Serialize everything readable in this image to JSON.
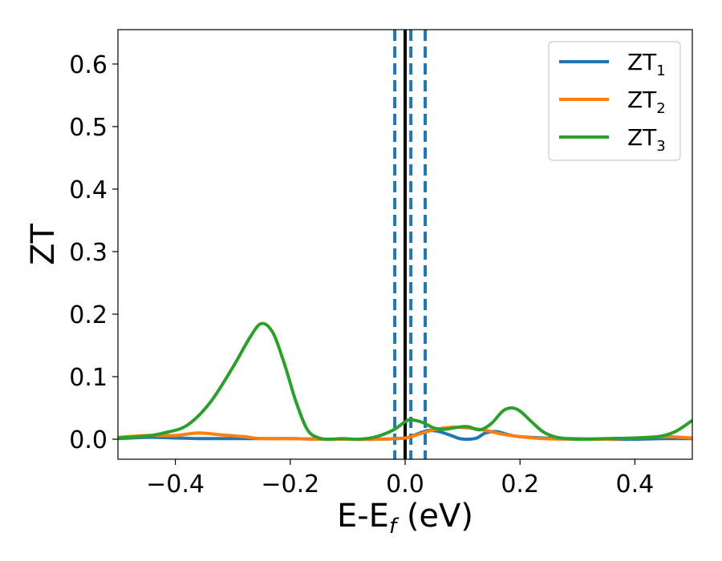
{
  "chart_data": {
    "type": "line",
    "title": "",
    "xlabel": "E-E",
    "xlabel_sub": "f",
    "xlabel_unit": " (eV)",
    "ylabel": "ZT",
    "xlim": [
      -0.5,
      0.5
    ],
    "ylim": [
      -0.032,
      0.655
    ],
    "xticks": [
      -0.4,
      -0.2,
      0.0,
      0.2,
      0.4
    ],
    "xtick_labels": [
      "−0.4",
      "−0.2",
      "0.0",
      "0.2",
      "0.4"
    ],
    "yticks": [
      0.0,
      0.1,
      0.2,
      0.3,
      0.4,
      0.5,
      0.6
    ],
    "ytick_labels": [
      "0.0",
      "0.1",
      "0.2",
      "0.3",
      "0.4",
      "0.5",
      "0.6"
    ],
    "grid": false,
    "legend_position": "top-right",
    "vertical_lines": [
      {
        "x": 0.0,
        "style": "solid",
        "color": "#000000"
      },
      {
        "x": -0.018,
        "style": "dashed",
        "color": "#1f77b4"
      },
      {
        "x": 0.01,
        "style": "dashed",
        "color": "#1f77b4"
      },
      {
        "x": 0.035,
        "style": "dashed",
        "color": "#1f77b4"
      }
    ],
    "series": [
      {
        "name": "ZT",
        "sub": "1",
        "color": "#1f77b4",
        "x": [
          -0.5,
          -0.45,
          -0.4,
          -0.36,
          -0.3,
          -0.25,
          -0.2,
          -0.15,
          -0.1,
          -0.05,
          0.0,
          0.02,
          0.04,
          0.06,
          0.08,
          0.095,
          0.11,
          0.125,
          0.14,
          0.16,
          0.18,
          0.2,
          0.24,
          0.28,
          0.35,
          0.4,
          0.45,
          0.5
        ],
        "y": [
          0.001,
          0.003,
          0.002,
          0.001,
          0.001,
          0.001,
          0.001,
          0.0,
          0.0,
          0.0,
          0.002,
          0.008,
          0.014,
          0.012,
          0.006,
          0.001,
          0.0,
          0.002,
          0.01,
          0.012,
          0.007,
          0.004,
          0.002,
          0.001,
          0.0,
          0.0,
          0.001,
          0.001
        ]
      },
      {
        "name": "ZT",
        "sub": "2",
        "color": "#ff7f0e",
        "x": [
          -0.5,
          -0.45,
          -0.4,
          -0.36,
          -0.32,
          -0.28,
          -0.25,
          -0.2,
          -0.15,
          -0.1,
          -0.05,
          0.0,
          0.02,
          0.05,
          0.08,
          0.11,
          0.14,
          0.17,
          0.2,
          0.24,
          0.3,
          0.35,
          0.4,
          0.45,
          0.5
        ],
        "y": [
          0.003,
          0.006,
          0.006,
          0.01,
          0.007,
          0.004,
          0.001,
          0.001,
          0.0,
          0.0,
          0.0,
          0.002,
          0.007,
          0.015,
          0.019,
          0.018,
          0.014,
          0.008,
          0.004,
          0.001,
          0.0,
          0.0,
          0.002,
          0.004,
          0.002
        ]
      },
      {
        "name": "ZT",
        "sub": "3",
        "color": "#2ca02c",
        "x": [
          -0.5,
          -0.45,
          -0.42,
          -0.38,
          -0.34,
          -0.3,
          -0.27,
          -0.25,
          -0.23,
          -0.21,
          -0.19,
          -0.17,
          -0.15,
          -0.13,
          -0.11,
          -0.08,
          -0.05,
          -0.02,
          0.0,
          0.01,
          0.03,
          0.05,
          0.07,
          0.09,
          0.11,
          0.13,
          0.15,
          0.17,
          0.185,
          0.2,
          0.22,
          0.24,
          0.26,
          0.28,
          0.3,
          0.35,
          0.4,
          0.44,
          0.47,
          0.5
        ],
        "y": [
          0.002,
          0.005,
          0.01,
          0.022,
          0.058,
          0.115,
          0.163,
          0.185,
          0.17,
          0.12,
          0.06,
          0.015,
          0.002,
          0.0,
          0.001,
          0.0,
          0.004,
          0.015,
          0.028,
          0.031,
          0.027,
          0.018,
          0.016,
          0.019,
          0.02,
          0.015,
          0.025,
          0.045,
          0.05,
          0.045,
          0.028,
          0.012,
          0.004,
          0.001,
          0.0,
          0.001,
          0.002,
          0.004,
          0.012,
          0.03
        ]
      }
    ]
  }
}
